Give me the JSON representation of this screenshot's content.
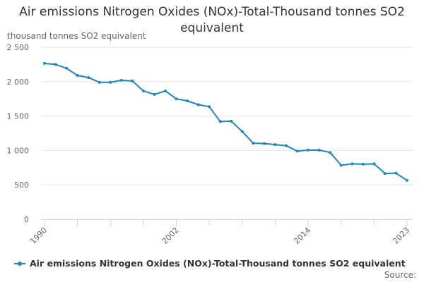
{
  "chart_data": {
    "type": "line",
    "title": "Air emissions Nitrogen Oxides (NOx)-Total-Thousand tonnes SO2 equivalent",
    "ylabel": "thousand tonnes SO2 equivalent",
    "ylim": [
      0,
      2500
    ],
    "yticks": [
      {
        "value": 0,
        "label": "0"
      },
      {
        "value": 500,
        "label": "500"
      },
      {
        "value": 1000,
        "label": "1 000"
      },
      {
        "value": 1500,
        "label": "1 500"
      },
      {
        "value": 2000,
        "label": "2 000"
      },
      {
        "value": 2500,
        "label": "2 500"
      }
    ],
    "xticks": [
      "1990",
      "2002",
      "2014",
      "2023"
    ],
    "x": [
      1990,
      1991,
      1992,
      1993,
      1994,
      1995,
      1996,
      1997,
      1998,
      1999,
      2000,
      2001,
      2002,
      2003,
      2004,
      2005,
      2006,
      2007,
      2008,
      2009,
      2010,
      2011,
      2012,
      2013,
      2014,
      2015,
      2016,
      2017,
      2018,
      2019,
      2020,
      2021,
      2022,
      2023
    ],
    "series": [
      {
        "name": "Air emissions Nitrogen Oxides (NOx)-Total-Thousand tonnes SO2 equivalent",
        "color": "#1f86b9",
        "values": [
          2265,
          2250,
          2195,
          2090,
          2060,
          1990,
          1990,
          2020,
          2010,
          1865,
          1815,
          1865,
          1750,
          1720,
          1665,
          1635,
          1420,
          1425,
          1275,
          1105,
          1100,
          1085,
          1070,
          990,
          1005,
          1005,
          970,
          785,
          805,
          800,
          805,
          665,
          670,
          565
        ]
      }
    ]
  },
  "legend": {
    "label": "Air emissions Nitrogen Oxides (NOx)-Total-Thousand tonnes SO2 equivalent"
  },
  "credit": "Source:"
}
